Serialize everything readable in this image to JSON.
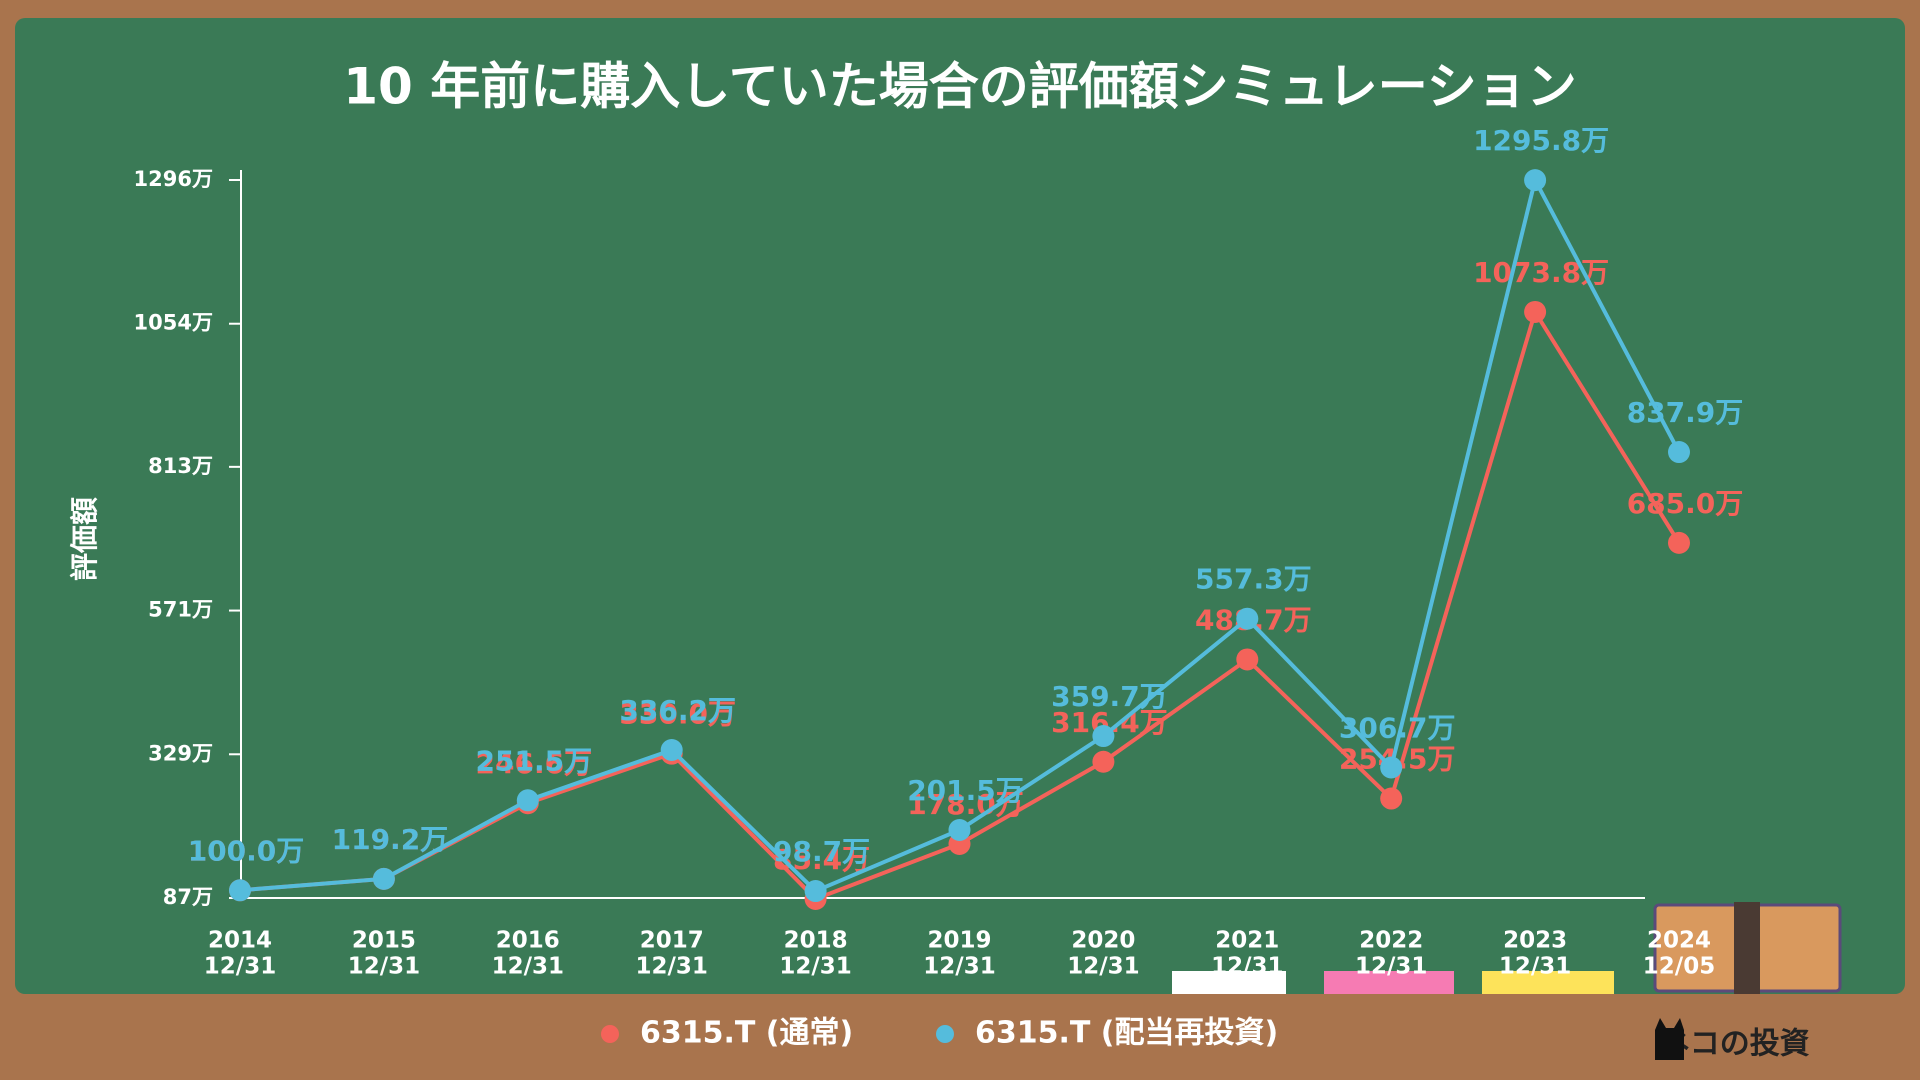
{
  "chart_data": {
    "type": "line",
    "title": "10 年前に購入していた場合の評価額シミュレーション",
    "y_label": "評価額",
    "categories": [
      {
        "year": "2014",
        "date": "12/31"
      },
      {
        "year": "2015",
        "date": "12/31"
      },
      {
        "year": "2016",
        "date": "12/31"
      },
      {
        "year": "2017",
        "date": "12/31"
      },
      {
        "year": "2018",
        "date": "12/31"
      },
      {
        "year": "2019",
        "date": "12/31"
      },
      {
        "year": "2020",
        "date": "12/31"
      },
      {
        "year": "2021",
        "date": "12/31"
      },
      {
        "year": "2022",
        "date": "12/31"
      },
      {
        "year": "2023",
        "date": "12/31"
      },
      {
        "year": "2024",
        "date": "12/05"
      }
    ],
    "series": [
      {
        "name": "6315.T (通常)",
        "color": "#f4635a",
        "values": [
          100.0,
          119.2,
          246.6,
          330.0,
          85.4,
          178.0,
          316.4,
          488.7,
          254.5,
          1073.8,
          685.0
        ],
        "value_labels": [
          "100.0万",
          "119.2万",
          "246.6万",
          "330.0万",
          "85.4万",
          "178.0万",
          "316.4万",
          "488.7万",
          "254.5万",
          "1073.8万",
          "685.0万"
        ]
      },
      {
        "name": "6315.T (配当再投資)",
        "color": "#55bcdc",
        "values": [
          100.0,
          119.2,
          251.5,
          336.2,
          98.7,
          201.5,
          359.7,
          557.3,
          306.7,
          1295.8,
          837.9
        ],
        "value_labels": [
          "100.0万",
          "119.2万",
          "251.5万",
          "336.2万",
          "98.7万",
          "201.5万",
          "359.7万",
          "557.3万",
          "306.7万",
          "1295.8万",
          "837.9万"
        ]
      }
    ],
    "ylim": [
      87,
      1296
    ],
    "yticks": [
      {
        "value": 87,
        "label": "87万"
      },
      {
        "value": 329,
        "label": "329万"
      },
      {
        "value": 571,
        "label": "571万"
      },
      {
        "value": 813,
        "label": "813万"
      },
      {
        "value": 1054,
        "label": "1054万"
      },
      {
        "value": 1296,
        "label": "1296万"
      }
    ],
    "brand": "ネコの投資"
  }
}
